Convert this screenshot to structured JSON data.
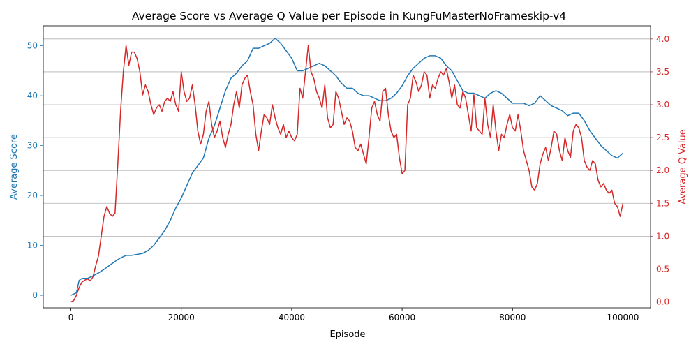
{
  "chart_data": {
    "type": "line",
    "title": "Average Score vs Average Q Value per Episode in KungFuMasterNoFrameskip-v4",
    "xlabel": "Episode",
    "xlim": [
      -5000,
      105000
    ],
    "xticks": [
      0,
      20000,
      40000,
      60000,
      80000,
      100000
    ],
    "grid": "horizontal lines from right axis",
    "axes": {
      "left": {
        "label": "Average Score",
        "color": "#1f77b4",
        "ylim": [
          -2.5,
          54
        ],
        "ticks": [
          0,
          10,
          20,
          30,
          40,
          50
        ]
      },
      "right": {
        "label": "Average Q Value",
        "color": "#d62728",
        "ylim": [
          -0.09,
          4.2
        ],
        "ticks": [
          0.0,
          0.5,
          1.0,
          1.5,
          2.0,
          2.5,
          3.0,
          3.5,
          4.0
        ]
      }
    },
    "series": [
      {
        "axis": "left",
        "color": "#1f77b4",
        "x": [
          0,
          1000,
          1500,
          2000,
          3000,
          4000,
          5000,
          6000,
          7000,
          8000,
          9000,
          10000,
          11000,
          12000,
          13000,
          14000,
          15000,
          16000,
          17000,
          18000,
          19000,
          20000,
          21000,
          22000,
          23000,
          24000,
          25000,
          26000,
          27000,
          28000,
          29000,
          30000,
          31000,
          32000,
          33000,
          34000,
          35000,
          36000,
          37000,
          38000,
          39000,
          40000,
          41000,
          42000,
          43000,
          44000,
          45000,
          46000,
          47000,
          48000,
          49000,
          50000,
          51000,
          52000,
          53000,
          54000,
          55000,
          56000,
          57000,
          58000,
          59000,
          60000,
          61000,
          62000,
          63000,
          64000,
          65000,
          66000,
          67000,
          68000,
          69000,
          70000,
          71000,
          72000,
          73000,
          74000,
          75000,
          76000,
          77000,
          78000,
          79000,
          80000,
          81000,
          82000,
          83000,
          84000,
          85000,
          86000,
          87000,
          88000,
          89000,
          90000,
          91000,
          92000,
          93000,
          94000,
          95000,
          96000,
          97000,
          98000,
          99000,
          100000
        ],
        "values": [
          0,
          0.5,
          3.0,
          3.4,
          3.4,
          3.9,
          4.5,
          5.2,
          6.0,
          6.8,
          7.5,
          8.0,
          8.0,
          8.2,
          8.4,
          9.0,
          10.0,
          11.5,
          13.0,
          15.0,
          17.5,
          19.5,
          22.0,
          24.5,
          26.0,
          27.5,
          31.5,
          34.0,
          37.5,
          41.0,
          43.5,
          44.5,
          46.0,
          47.0,
          49.5,
          49.5,
          50.0,
          50.5,
          51.5,
          50.5,
          49.0,
          47.5,
          45.0,
          45.0,
          45.5,
          46.0,
          46.5,
          46.0,
          45.0,
          44.0,
          42.5,
          41.5,
          41.5,
          40.5,
          40.0,
          40.0,
          39.5,
          39.0,
          39.0,
          39.5,
          40.5,
          42.0,
          44.0,
          45.5,
          46.5,
          47.5,
          48.0,
          48.0,
          47.5,
          46.0,
          45.0,
          43.0,
          41.0,
          40.5,
          40.5,
          40.0,
          39.5,
          40.5,
          41.0,
          40.5,
          39.5,
          38.5,
          38.5,
          38.5,
          38.0,
          38.5,
          40.0,
          39.0,
          38.0,
          37.5,
          37.0,
          36.0,
          36.5,
          36.5,
          35.0,
          33.0,
          31.5,
          30.0,
          29.0,
          28.0,
          27.5,
          28.5
        ]
      },
      {
        "axis": "right",
        "color": "#d62728",
        "x": [
          0,
          500,
          1000,
          1500,
          2000,
          2500,
          3000,
          3500,
          4000,
          4500,
          5000,
          5500,
          6000,
          6500,
          7000,
          7500,
          8000,
          8500,
          9000,
          9500,
          10000,
          10500,
          11000,
          11500,
          12000,
          12500,
          13000,
          13500,
          14000,
          14500,
          15000,
          15500,
          16000,
          16500,
          17000,
          17500,
          18000,
          18500,
          19000,
          19500,
          20000,
          20500,
          21000,
          21500,
          22000,
          22500,
          23000,
          23500,
          24000,
          24500,
          25000,
          25500,
          26000,
          26500,
          27000,
          27500,
          28000,
          28500,
          29000,
          29500,
          30000,
          30500,
          31000,
          31500,
          32000,
          32500,
          33000,
          33500,
          34000,
          34500,
          35000,
          35500,
          36000,
          36500,
          37000,
          37500,
          38000,
          38500,
          39000,
          39500,
          40000,
          40500,
          41000,
          41500,
          42000,
          42500,
          43000,
          43500,
          44000,
          44500,
          45000,
          45500,
          46000,
          46500,
          47000,
          47500,
          48000,
          48500,
          49000,
          49500,
          50000,
          50500,
          51000,
          51500,
          52000,
          52500,
          53000,
          53500,
          54000,
          54500,
          55000,
          55500,
          56000,
          56500,
          57000,
          57500,
          58000,
          58500,
          59000,
          59500,
          60000,
          60500,
          61000,
          61500,
          62000,
          62500,
          63000,
          63500,
          64000,
          64500,
          65000,
          65500,
          66000,
          66500,
          67000,
          67500,
          68000,
          68500,
          69000,
          69500,
          70000,
          70500,
          71000,
          71500,
          72000,
          72500,
          73000,
          73500,
          74000,
          74500,
          75000,
          75500,
          76000,
          76500,
          77000,
          77500,
          78000,
          78500,
          79000,
          79500,
          80000,
          80500,
          81000,
          81500,
          82000,
          82500,
          83000,
          83500,
          84000,
          84500,
          85000,
          85500,
          86000,
          86500,
          87000,
          87500,
          88000,
          88500,
          89000,
          89500,
          90000,
          90500,
          91000,
          91500,
          92000,
          92500,
          93000,
          93500,
          94000,
          94500,
          95000,
          95500,
          96000,
          96500,
          97000,
          97500,
          98000,
          98500,
          99000,
          99500,
          100000
        ],
        "values": [
          0.0,
          0.02,
          0.1,
          0.22,
          0.3,
          0.33,
          0.35,
          0.32,
          0.38,
          0.55,
          0.7,
          1.0,
          1.3,
          1.45,
          1.35,
          1.3,
          1.35,
          2.1,
          2.9,
          3.5,
          3.9,
          3.6,
          3.8,
          3.8,
          3.7,
          3.5,
          3.15,
          3.3,
          3.2,
          3.0,
          2.85,
          2.95,
          3.0,
          2.9,
          3.05,
          3.1,
          3.05,
          3.2,
          3.0,
          2.9,
          3.5,
          3.2,
          3.05,
          3.1,
          3.3,
          3.0,
          2.6,
          2.4,
          2.55,
          2.9,
          3.05,
          2.7,
          2.5,
          2.6,
          2.75,
          2.5,
          2.35,
          2.55,
          2.7,
          3.0,
          3.2,
          2.95,
          3.3,
          3.4,
          3.45,
          3.2,
          3.0,
          2.55,
          2.3,
          2.6,
          2.85,
          2.8,
          2.7,
          3.0,
          2.8,
          2.65,
          2.55,
          2.7,
          2.5,
          2.6,
          2.5,
          2.45,
          2.55,
          3.25,
          3.1,
          3.5,
          3.9,
          3.5,
          3.4,
          3.2,
          3.1,
          2.95,
          3.3,
          2.8,
          2.65,
          2.7,
          3.2,
          3.1,
          2.9,
          2.7,
          2.8,
          2.75,
          2.6,
          2.35,
          2.3,
          2.4,
          2.25,
          2.1,
          2.5,
          2.95,
          3.05,
          2.85,
          2.75,
          3.2,
          3.25,
          2.85,
          2.6,
          2.5,
          2.55,
          2.2,
          1.95,
          2.0,
          3.0,
          3.1,
          3.45,
          3.35,
          3.2,
          3.3,
          3.5,
          3.45,
          3.1,
          3.3,
          3.25,
          3.4,
          3.5,
          3.45,
          3.55,
          3.35,
          3.1,
          3.3,
          3.0,
          2.95,
          3.2,
          3.1,
          2.85,
          2.6,
          3.15,
          2.65,
          2.6,
          2.55,
          3.1,
          2.7,
          2.5,
          3.0,
          2.6,
          2.3,
          2.55,
          2.5,
          2.7,
          2.85,
          2.65,
          2.6,
          2.85,
          2.6,
          2.3,
          2.15,
          2.0,
          1.75,
          1.7,
          1.8,
          2.1,
          2.25,
          2.35,
          2.15,
          2.35,
          2.6,
          2.55,
          2.3,
          2.15,
          2.5,
          2.3,
          2.2,
          2.6,
          2.7,
          2.65,
          2.5,
          2.15,
          2.05,
          2.0,
          2.15,
          2.1,
          1.85,
          1.75,
          1.8,
          1.7,
          1.65,
          1.7,
          1.5,
          1.45,
          1.3,
          1.5
        ]
      }
    ]
  }
}
